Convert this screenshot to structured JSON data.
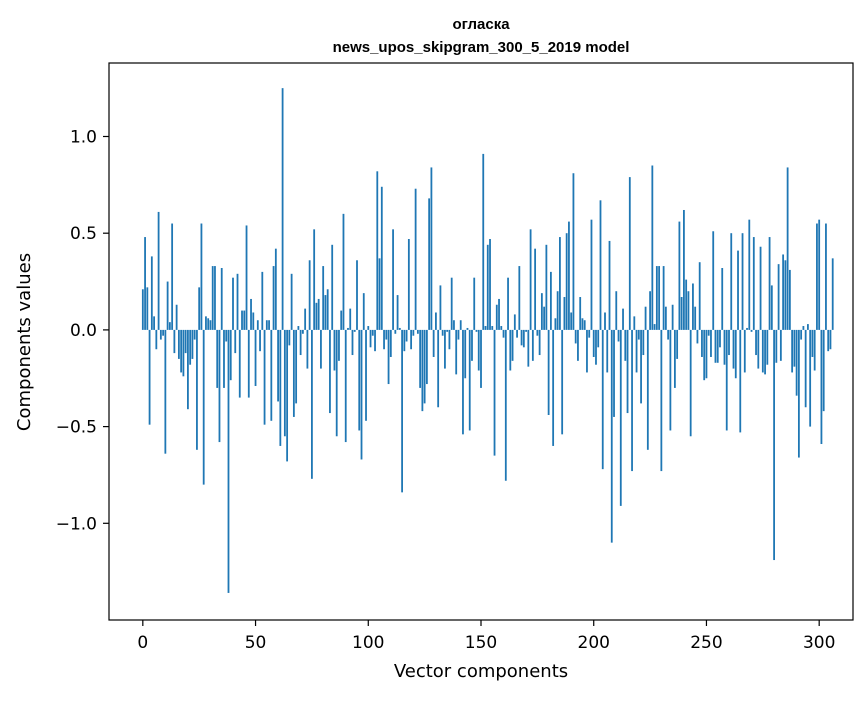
{
  "chart_data": {
    "type": "bar",
    "title": "огласка",
    "subtitle": "news_upos_skipgram_300_5_2019 model",
    "xlabel": "Vector components",
    "ylabel": "Components values",
    "xlim": [
      -15,
      315
    ],
    "ylim": [
      -1.5,
      1.38
    ],
    "xticks": [
      0,
      50,
      100,
      150,
      200,
      250,
      300
    ],
    "xtick_labels": [
      "0",
      "50",
      "100",
      "150",
      "200",
      "250",
      "300"
    ],
    "yticks": [
      -1.0,
      -0.5,
      0.0,
      0.5,
      1.0
    ],
    "ytick_labels": [
      "−1.0",
      "−0.5",
      "0.0",
      "0.5",
      "1.0"
    ],
    "grid": false,
    "bar_color": "#1f77b4",
    "x_start": 0,
    "values": [
      0.21,
      0.48,
      0.22,
      -0.49,
      0.38,
      0.07,
      -0.1,
      0.61,
      -0.05,
      -0.03,
      -0.64,
      0.25,
      0.04,
      0.55,
      -0.12,
      0.13,
      -0.15,
      -0.22,
      -0.24,
      -0.12,
      -0.41,
      -0.18,
      -0.15,
      -0.05,
      -0.62,
      0.22,
      0.55,
      -0.8,
      0.07,
      0.06,
      0.05,
      0.33,
      0.33,
      -0.3,
      -0.58,
      0.32,
      -0.3,
      -0.06,
      -1.36,
      -0.26,
      0.27,
      -0.12,
      0.29,
      -0.35,
      0.1,
      0.1,
      0.54,
      -0.35,
      0.16,
      0.09,
      -0.29,
      0.05,
      -0.11,
      0.3,
      -0.49,
      0.05,
      0.05,
      -0.47,
      0.33,
      0.42,
      -0.37,
      -0.6,
      1.25,
      -0.55,
      -0.68,
      -0.08,
      0.29,
      -0.45,
      -0.38,
      0.02,
      -0.13,
      -0.02,
      0.11,
      -0.2,
      0.36,
      -0.77,
      0.52,
      0.14,
      0.16,
      -0.2,
      0.33,
      0.18,
      0.21,
      -0.43,
      0.44,
      -0.21,
      -0.55,
      -0.16,
      0.1,
      0.6,
      -0.58,
      0.01,
      0.11,
      -0.13,
      -0.01,
      0.36,
      -0.52,
      -0.67,
      0.19,
      -0.47,
      0.02,
      -0.09,
      -0.03,
      -0.11,
      0.82,
      0.37,
      0.74,
      -0.1,
      -0.05,
      -0.28,
      -0.14,
      0.52,
      -0.02,
      0.18,
      0.01,
      -0.84,
      -0.11,
      -0.06,
      0.47,
      -0.1,
      -0.03,
      0.73,
      -0.02,
      -0.3,
      -0.42,
      -0.38,
      -0.28,
      0.68,
      0.84,
      -0.14,
      0.09,
      -0.4,
      0.23,
      -0.03,
      -0.2,
      -0.01,
      -0.1,
      0.27,
      0.05,
      -0.23,
      -0.05,
      0.05,
      -0.54,
      -0.25,
      0.01,
      -0.52,
      -0.16,
      0.27,
      -0.01,
      -0.21,
      -0.3,
      0.91,
      0.02,
      0.44,
      0.47,
      0.02,
      -0.65,
      0.13,
      0.16,
      0.02,
      -0.04,
      -0.78,
      0.27,
      -0.21,
      -0.16,
      0.08,
      -0.04,
      0.33,
      -0.08,
      -0.09,
      -0.01,
      -0.19,
      0.52,
      -0.16,
      0.42,
      -0.03,
      -0.13,
      0.19,
      0.12,
      0.44,
      -0.44,
      0.3,
      -0.6,
      0.06,
      0.2,
      0.48,
      -0.54,
      0.17,
      0.5,
      0.56,
      0.09,
      0.81,
      -0.07,
      -0.16,
      0.17,
      0.06,
      0.05,
      -0.22,
      -0.04,
      0.57,
      -0.14,
      -0.18,
      -0.09,
      0.67,
      -0.72,
      0.09,
      -0.22,
      0.46,
      -1.1,
      -0.45,
      0.2,
      -0.06,
      -0.91,
      0.11,
      -0.16,
      -0.43,
      0.79,
      -0.73,
      0.07,
      -0.22,
      -0.05,
      -0.38,
      -0.13,
      0.12,
      -0.62,
      0.2,
      0.85,
      0.03,
      0.33,
      0.33,
      -0.73,
      0.33,
      0.12,
      -0.05,
      -0.52,
      0.13,
      -0.3,
      -0.15,
      0.56,
      0.17,
      0.62,
      0.26,
      0.2,
      -0.55,
      0.24,
      0.12,
      -0.07,
      0.35,
      -0.14,
      -0.26,
      -0.25,
      -0.03,
      -0.14,
      0.51,
      -0.17,
      -0.17,
      -0.09,
      0.32,
      -0.18,
      -0.52,
      -0.13,
      0.5,
      -0.2,
      -0.25,
      0.41,
      -0.53,
      0.5,
      -0.22,
      0.01,
      0.57,
      -0.01,
      0.48,
      -0.13,
      -0.2,
      0.43,
      -0.22,
      -0.23,
      -0.18,
      0.48,
      0.23,
      -1.19,
      -0.17,
      0.34,
      -0.16,
      0.39,
      0.36,
      0.84,
      0.31,
      -0.22,
      -0.19,
      -0.34,
      -0.66,
      -0.05,
      0.02,
      -0.4,
      0.03,
      -0.5,
      -0.14,
      -0.21,
      0.55,
      0.57,
      -0.59,
      -0.42,
      0.55,
      -0.11,
      -0.1,
      0.37
    ]
  }
}
